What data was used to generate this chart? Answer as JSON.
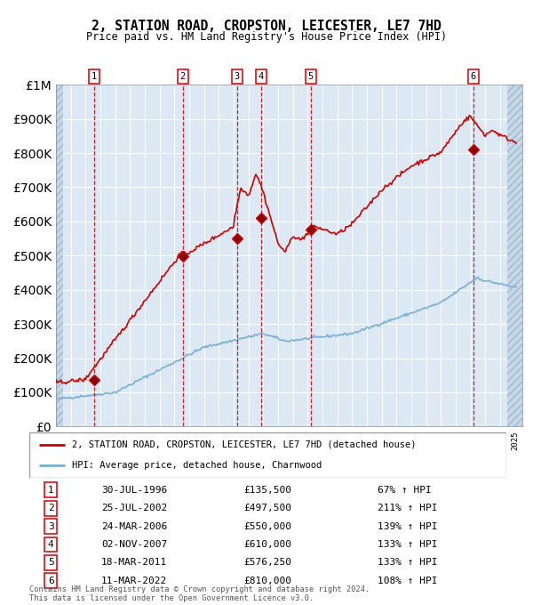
{
  "title": "2, STATION ROAD, CROPSTON, LEICESTER, LE7 7HD",
  "subtitle": "Price paid vs. HM Land Registry's House Price Index (HPI)",
  "background_color": "#dce9f5",
  "grid_color": "#ffffff",
  "red_line_color": "#cc0000",
  "blue_line_color": "#7ab0d4",
  "purchases": [
    {
      "num": 1,
      "date_year": 1996.57,
      "price": 135500,
      "label": "30-JUL-1996",
      "pct": "67%"
    },
    {
      "num": 2,
      "date_year": 2002.56,
      "price": 497500,
      "label": "25-JUL-2002",
      "pct": "211%"
    },
    {
      "num": 3,
      "date_year": 2006.23,
      "price": 550000,
      "label": "24-MAR-2006",
      "pct": "139%"
    },
    {
      "num": 4,
      "date_year": 2007.84,
      "price": 610000,
      "label": "02-NOV-2007",
      "pct": "133%"
    },
    {
      "num": 5,
      "date_year": 2011.21,
      "price": 576250,
      "label": "18-MAR-2011",
      "pct": "133%"
    },
    {
      "num": 6,
      "date_year": 2022.19,
      "price": 810000,
      "label": "11-MAR-2022",
      "pct": "108%"
    }
  ],
  "legend_line1": "2, STATION ROAD, CROPSTON, LEICESTER, LE7 7HD (detached house)",
  "legend_line2": "HPI: Average price, detached house, Charnwood",
  "table_rows": [
    [
      "1",
      "30-JUL-1996",
      "£135,500",
      "67% ↑ HPI"
    ],
    [
      "2",
      "25-JUL-2002",
      "£497,500",
      "211% ↑ HPI"
    ],
    [
      "3",
      "24-MAR-2006",
      "£550,000",
      "139% ↑ HPI"
    ],
    [
      "4",
      "02-NOV-2007",
      "£610,000",
      "133% ↑ HPI"
    ],
    [
      "5",
      "18-MAR-2011",
      "£576,250",
      "133% ↑ HPI"
    ],
    [
      "6",
      "11-MAR-2022",
      "£810,000",
      "108% ↑ HPI"
    ]
  ],
  "footer": "Contains HM Land Registry data © Crown copyright and database right 2024.\nThis data is licensed under the Open Government Licence v3.0.",
  "ylim": [
    0,
    1000000
  ],
  "xlim_start": 1994.0,
  "xlim_end": 2025.5,
  "yticks": [
    0,
    100000,
    200000,
    300000,
    400000,
    500000,
    600000,
    700000,
    800000,
    900000,
    1000000
  ],
  "ytick_labels": [
    "£0",
    "£100K",
    "£200K",
    "£300K",
    "£400K",
    "£500K",
    "£600K",
    "£700K",
    "£800K",
    "£900K",
    "£1M"
  ]
}
